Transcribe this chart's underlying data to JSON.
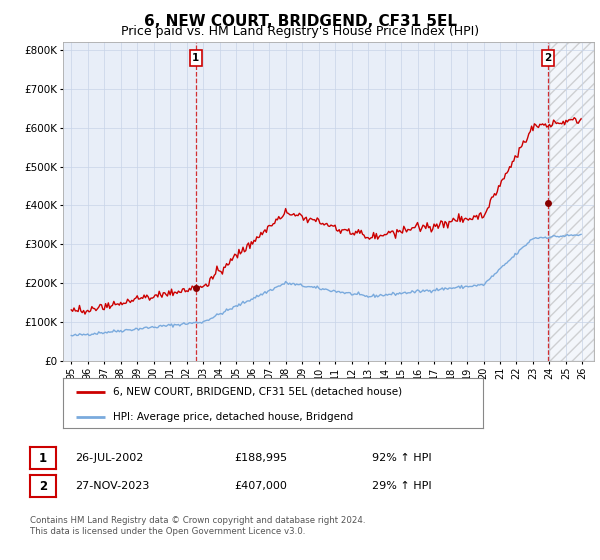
{
  "title": "6, NEW COURT, BRIDGEND, CF31 5EL",
  "subtitle": "Price paid vs. HM Land Registry's House Price Index (HPI)",
  "title_fontsize": 11,
  "subtitle_fontsize": 9,
  "ylabel_ticks": [
    "£0",
    "£100K",
    "£200K",
    "£300K",
    "£400K",
    "£500K",
    "£600K",
    "£700K",
    "£800K"
  ],
  "ytick_values": [
    0,
    100000,
    200000,
    300000,
    400000,
    500000,
    600000,
    700000,
    800000
  ],
  "ylim": [
    0,
    820000
  ],
  "xlim_start": 1994.5,
  "xlim_end": 2026.7,
  "xtick_years": [
    1995,
    1996,
    1997,
    1998,
    1999,
    2000,
    2001,
    2002,
    2003,
    2004,
    2005,
    2006,
    2007,
    2008,
    2009,
    2010,
    2011,
    2012,
    2013,
    2014,
    2015,
    2016,
    2017,
    2018,
    2019,
    2020,
    2021,
    2022,
    2023,
    2024,
    2025,
    2026
  ],
  "grid_color": "#c8d4e8",
  "background_color": "#ffffff",
  "plot_bg_color": "#e8eef8",
  "red_line_color": "#cc0000",
  "blue_line_color": "#7aaadd",
  "sale1_x": 2002.55,
  "sale1_y": 188995,
  "sale2_x": 2023.9,
  "sale2_y": 407000,
  "legend_line1": "6, NEW COURT, BRIDGEND, CF31 5EL (detached house)",
  "legend_line2": "HPI: Average price, detached house, Bridgend",
  "annotation1_num": "1",
  "annotation1_date": "26-JUL-2002",
  "annotation1_price": "£188,995",
  "annotation1_hpi": "92% ↑ HPI",
  "annotation2_num": "2",
  "annotation2_date": "27-NOV-2023",
  "annotation2_price": "£407,000",
  "annotation2_hpi": "29% ↑ HPI",
  "footer": "Contains HM Land Registry data © Crown copyright and database right 2024.\nThis data is licensed under the Open Government Licence v3.0."
}
